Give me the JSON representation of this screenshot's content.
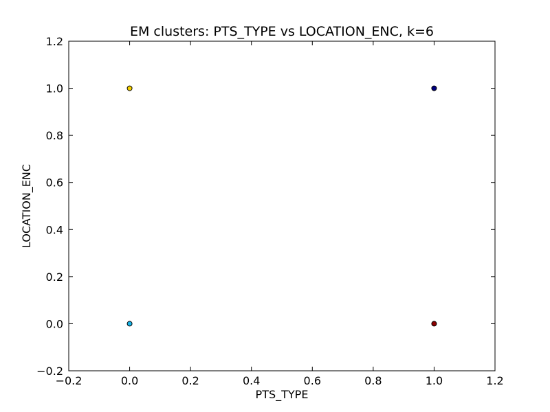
{
  "chart_data": {
    "type": "scatter",
    "title": "EM clusters: PTS_TYPE vs LOCATION_ENC, k=6",
    "xlabel": "PTS_TYPE",
    "ylabel": "LOCATION_ENC",
    "xlim": [
      -0.2,
      1.2
    ],
    "ylim": [
      -0.2,
      1.2
    ],
    "xticks": [
      -0.2,
      0.0,
      0.2,
      0.4,
      0.6,
      0.8,
      1.0,
      1.2
    ],
    "yticks": [
      -0.2,
      0.0,
      0.2,
      0.4,
      0.6,
      0.8,
      1.0,
      1.2
    ],
    "xtick_labels": [
      "−0.2",
      "0.0",
      "0.2",
      "0.4",
      "0.6",
      "0.8",
      "1.0",
      "1.2"
    ],
    "ytick_labels": [
      "−0.2",
      "0.0",
      "0.2",
      "0.4",
      "0.6",
      "0.8",
      "1.0",
      "1.2"
    ],
    "grid": false,
    "legend": "none",
    "points": [
      {
        "x": 0.0,
        "y": 1.0,
        "color": "#f5d000"
      },
      {
        "x": 1.0,
        "y": 1.0,
        "color": "#000080"
      },
      {
        "x": 0.0,
        "y": 0.0,
        "color": "#18b4e8"
      },
      {
        "x": 1.0,
        "y": 0.0,
        "color": "#8b0000"
      }
    ]
  }
}
